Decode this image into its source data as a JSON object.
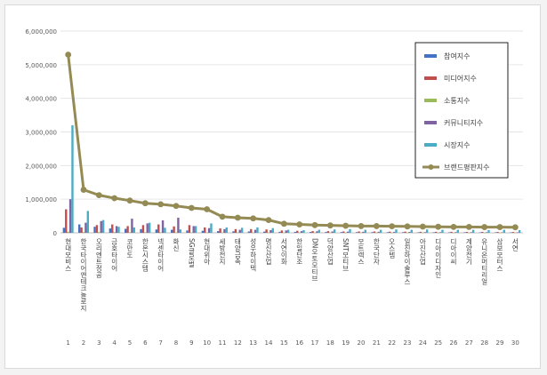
{
  "chart_data": {
    "type": "bar",
    "title": "",
    "xlabel": "",
    "ylabel": "",
    "ylim": [
      0,
      6000000
    ],
    "y_ticks": [
      "0",
      "1,000,000",
      "2,000,000",
      "3,000,000",
      "4,000,000",
      "5,000,000",
      "6,000,000"
    ],
    "grid": true,
    "legend_placement": "right",
    "ranks": [
      "1",
      "2",
      "3",
      "4",
      "5",
      "6",
      "7",
      "8",
      "9",
      "10",
      "11",
      "12",
      "13",
      "14",
      "15",
      "16",
      "17",
      "18",
      "19",
      "20",
      "21",
      "22",
      "23",
      "24",
      "25",
      "26",
      "27",
      "28",
      "29",
      "30"
    ],
    "categories": [
      "현대모비스",
      "한국타이어앤테크놀로지",
      "오리엔트정공",
      "금호타이어",
      "코만도",
      "한온시스템",
      "넥센타이어",
      "화신",
      "SG글로벌",
      "현대위아",
      "세방전지",
      "태양금속",
      "성우하이텍",
      "명신산업",
      "서연이화",
      "한일단조",
      "DN오토모티브",
      "덕양산업",
      "SNT모티브",
      "모트렉스",
      "한국단자",
      "오스템",
      "일진하이솔루스",
      "아진산업",
      "디아이디자인",
      "디아이씨",
      "계양전기",
      "유니온머티리얼",
      "삼보모터스",
      "서연"
    ],
    "series": [
      {
        "name": "참여지수",
        "color": "#4472c4",
        "values": [
          150000,
          250000,
          180000,
          130000,
          120000,
          110000,
          100000,
          90000,
          70000,
          60000,
          50000,
          45000,
          40000,
          35000,
          30000,
          28000,
          26000,
          24000,
          22000,
          20000,
          20000,
          18000,
          18000,
          16000,
          16000,
          15000,
          15000,
          14000,
          14000,
          13000
        ]
      },
      {
        "name": "미디어지수",
        "color": "#c0504d",
        "values": [
          700000,
          160000,
          230000,
          250000,
          200000,
          230000,
          250000,
          190000,
          230000,
          160000,
          130000,
          110000,
          110000,
          100000,
          70000,
          60000,
          50000,
          50000,
          40000,
          40000,
          40000,
          35000,
          35000,
          30000,
          30000,
          30000,
          28000,
          28000,
          25000,
          25000
        ]
      },
      {
        "name": "소통지수",
        "color": "#9bbb59",
        "values": [
          30000,
          20000,
          20000,
          20000,
          15000,
          15000,
          15000,
          10000,
          10000,
          10000,
          10000,
          8000,
          8000,
          8000,
          6000,
          6000,
          5000,
          5000,
          5000,
          5000,
          5000,
          4000,
          4000,
          4000,
          4000,
          3000,
          3000,
          3000,
          3000,
          3000
        ]
      },
      {
        "name": "커뮤니티지수",
        "color": "#8064a2",
        "values": [
          1000000,
          300000,
          350000,
          200000,
          420000,
          280000,
          370000,
          450000,
          200000,
          140000,
          110000,
          90000,
          90000,
          80000,
          70000,
          50000,
          45000,
          40000,
          35000,
          30000,
          30000,
          25000,
          25000,
          20000,
          20000,
          20000,
          18000,
          18000,
          15000,
          15000
        ]
      },
      {
        "name": "시장지수",
        "color": "#4bacc6",
        "values": [
          3200000,
          650000,
          380000,
          180000,
          160000,
          300000,
          150000,
          100000,
          200000,
          280000,
          160000,
          150000,
          160000,
          140000,
          90000,
          80000,
          90000,
          100000,
          110000,
          90000,
          90000,
          100000,
          90000,
          100000,
          90000,
          90000,
          90000,
          80000,
          90000,
          80000
        ]
      },
      {
        "name": "브랜드평판지수",
        "color": "#948a54",
        "values": [
          5300000,
          1280000,
          1120000,
          1030000,
          960000,
          880000,
          850000,
          800000,
          740000,
          700000,
          480000,
          450000,
          430000,
          380000,
          270000,
          250000,
          230000,
          220000,
          210000,
          200000,
          200000,
          195000,
          190000,
          185000,
          180000,
          175000,
          175000,
          170000,
          170000,
          165000
        ]
      }
    ]
  }
}
